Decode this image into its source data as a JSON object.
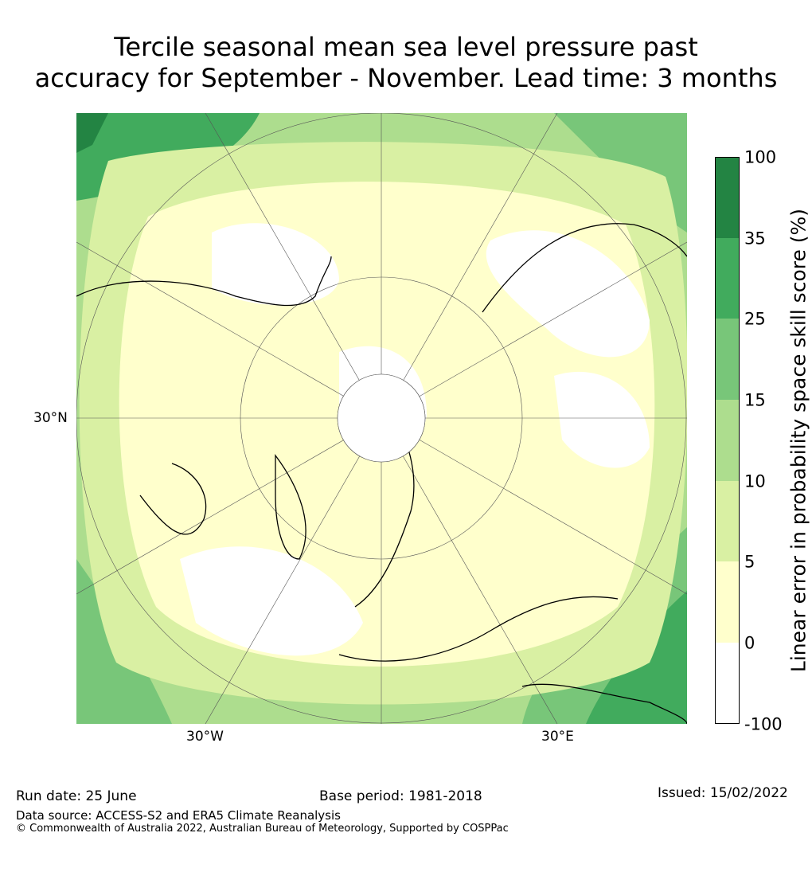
{
  "title": {
    "line1": "Tercile seasonal mean sea level pressure past",
    "line2": "accuracy for September - November. Lead time: 3 months"
  },
  "map": {
    "lat_label": "30°N",
    "lon_labels": [
      "30°W",
      "30°E"
    ]
  },
  "colorbar": {
    "label": "Linear error in probability space skill score (%)",
    "ticks": [
      "100",
      "35",
      "25",
      "15",
      "10",
      "5",
      "0",
      "-100"
    ],
    "colors": [
      "#ffffff",
      "#ffffcc",
      "#d9f0a3",
      "#addd8e",
      "#78c679",
      "#41ab5d",
      "#238443"
    ]
  },
  "footer": {
    "run_date": "Run date: 25 June",
    "base_period": "Base period: 1981-2018",
    "issued": "Issued: 15/02/2022",
    "data_source": "Data source: ACCESS-S2 and ERA5 Climate Reanalysis",
    "copyright": "© Commonwealth of Australia 2022, Australian Bureau of Meteorology, Supported by COSPPac"
  }
}
